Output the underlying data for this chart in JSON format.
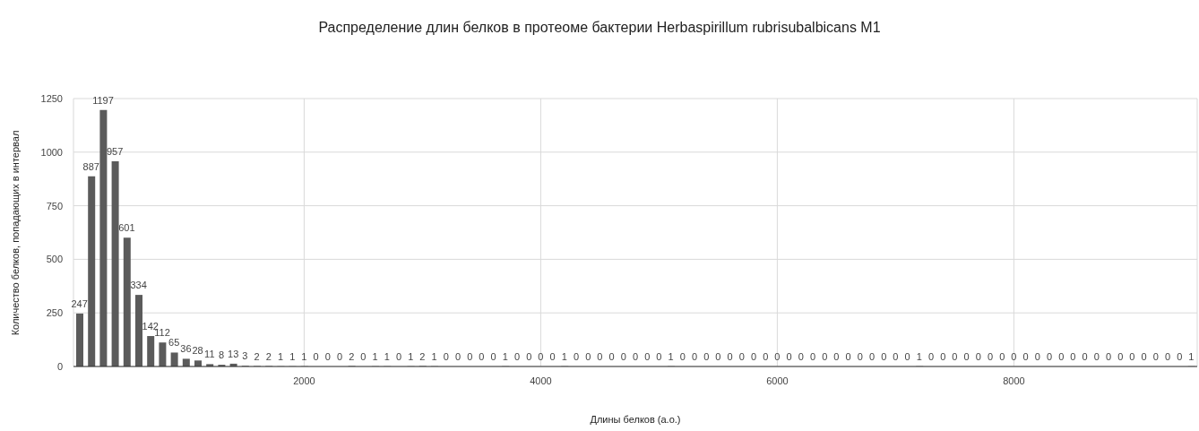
{
  "chart_data": {
    "type": "histogram",
    "title": "Распределение длин белков в протеоме бактерии Herbaspirillum rubrisubalbicans M1",
    "xlabel": "Длины белков (а.о.)",
    "ylabel": "Количество белков, попадающих в интервал",
    "bins": [
      50,
      150,
      250,
      350,
      450,
      550,
      650,
      750,
      850,
      950,
      1050,
      1150,
      1250,
      1350,
      1450,
      1550,
      1650,
      1750,
      1850,
      1950,
      2050,
      2150,
      2250,
      2350,
      2450,
      2550,
      2650,
      2750,
      2850,
      2950,
      3050,
      3150,
      3250,
      3350,
      3450,
      3550,
      3650,
      3750,
      3850,
      3950,
      4050,
      4150,
      4250,
      4350,
      4450,
      4550,
      4650,
      4750,
      4850,
      4950,
      5050,
      5150,
      5250,
      5350,
      5450,
      5550,
      5650,
      5750,
      5850,
      5950,
      6050,
      6150,
      6250,
      6350,
      6450,
      6550,
      6650,
      6750,
      6850,
      6950,
      7050,
      7150,
      7250,
      7350,
      7450,
      7550,
      7650,
      7750,
      7850,
      7950,
      8050,
      8150,
      8250,
      8350,
      8450,
      8550,
      8650,
      8750,
      8850,
      8950,
      9050,
      9150,
      9250,
      9350,
      9450,
      9550
    ],
    "values": [
      247,
      887,
      1197,
      957,
      601,
      334,
      142,
      112,
      65,
      36,
      28,
      11,
      8,
      13,
      3,
      2,
      2,
      1,
      1,
      1,
      0,
      0,
      0,
      2,
      0,
      1,
      1,
      0,
      1,
      2,
      1,
      0,
      0,
      0,
      0,
      0,
      1,
      0,
      0,
      0,
      0,
      1,
      0,
      0,
      0,
      0,
      0,
      0,
      0,
      0,
      1,
      0,
      0,
      0,
      0,
      0,
      0,
      0,
      0,
      0,
      0,
      0,
      0,
      0,
      0,
      0,
      0,
      0,
      0,
      0,
      0,
      1,
      0,
      0,
      0,
      0,
      0,
      0,
      0,
      0,
      0,
      0,
      0,
      0,
      0,
      0,
      0,
      0,
      0,
      0,
      0,
      0,
      0,
      0,
      1
    ],
    "color": "#5b5b5b",
    "xlim": [
      50,
      9550
    ],
    "xticks": [
      2000,
      4000,
      6000,
      8000
    ],
    "ylim": [
      0,
      1250
    ],
    "yticks": [
      0,
      250,
      500,
      750,
      1000,
      1250
    ],
    "grid": true,
    "data_labels": true
  }
}
